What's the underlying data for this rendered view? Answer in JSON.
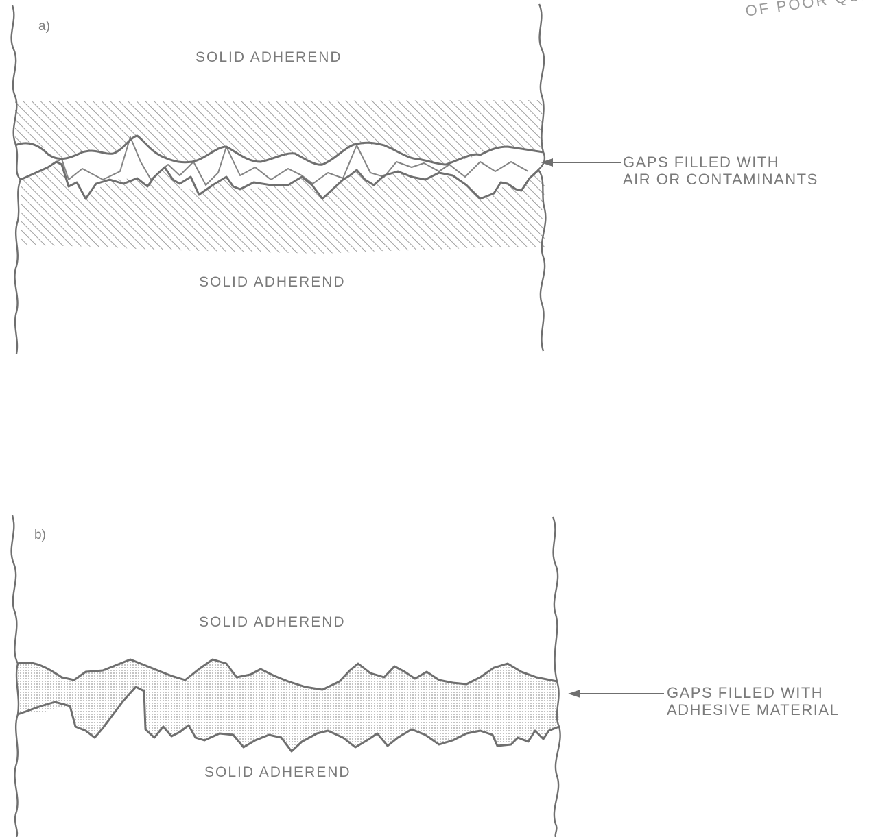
{
  "stamp": "OF POOR QUAL",
  "panel_a": {
    "label": "a)",
    "top_adherend": "SOLID ADHEREND",
    "bottom_adherend": "SOLID ADHEREND",
    "callout": {
      "line1": "GAPS FILLED WITH",
      "line2": "AIR OR CONTAMINANTS"
    }
  },
  "panel_b": {
    "label": "b)",
    "top_adherend": "SOLID ADHEREND",
    "bottom_adherend": "SOLID ADHEREND",
    "callout": {
      "line1": "GAPS FILLED WITH",
      "line2": "ADHESIVE MATERIAL"
    }
  },
  "colors": {
    "line": "#6f6f6f",
    "hatch": "#8a8a8a",
    "dots": "#9a9a9a",
    "text": "#7a7a7a"
  }
}
